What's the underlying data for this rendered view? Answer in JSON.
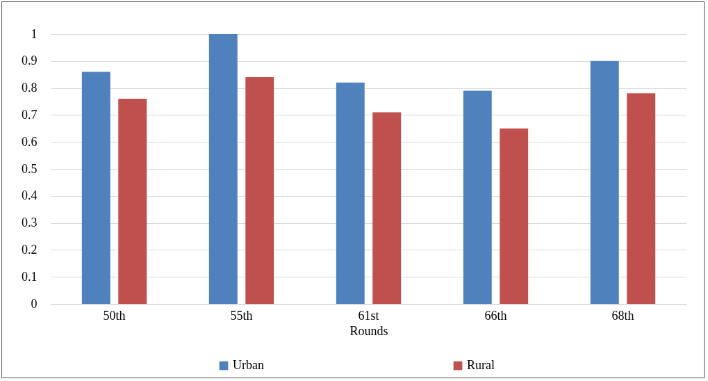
{
  "chart_data": {
    "type": "bar",
    "xlabel": "Rounds",
    "categories": [
      "50th",
      "55th",
      "61st",
      "66th",
      "68th"
    ],
    "series": [
      {
        "name": "Urban",
        "color": "#4f81bd",
        "values": [
          0.86,
          1.0,
          0.82,
          0.79,
          0.9
        ]
      },
      {
        "name": "Rural",
        "color": "#c0504d",
        "values": [
          0.76,
          0.84,
          0.71,
          0.65,
          0.78
        ]
      }
    ],
    "ylim": [
      0,
      1
    ],
    "yticks": [
      0,
      0.1,
      0.2,
      0.3,
      0.4,
      0.5,
      0.6,
      0.7,
      0.8,
      0.9,
      1
    ],
    "grid": "y",
    "legend": "bottom"
  }
}
